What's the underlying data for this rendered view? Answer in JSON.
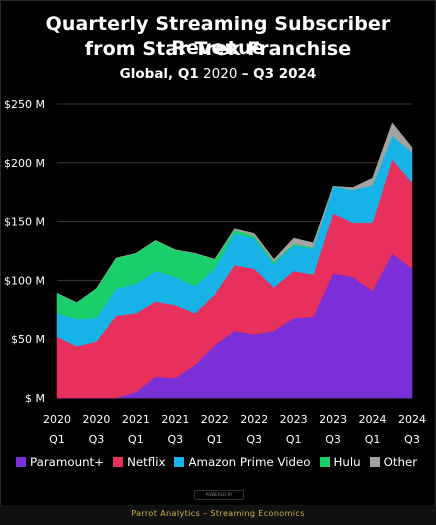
{
  "header": {
    "title_line1": "Quarterly Streaming Subscriber Revenue",
    "title_line2": "from Star Trek Franchise",
    "subtitle_bold": "Global, Q1",
    "subtitle_light_1": " 2020 ",
    "subtitle_dash": "–",
    "subtitle_bold_2": " Q3 2024"
  },
  "chart_data": {
    "type": "area",
    "stacked": true,
    "title": "Quarterly Streaming Subscriber Revenue from Star Trek Franchise",
    "subtitle": "Global, Q1 2020 – Q3 2024",
    "quarters": [
      "Q1 2020",
      "Q2 2020",
      "Q3 2020",
      "Q4 2020",
      "Q1 2021",
      "Q2 2021",
      "Q3 2021",
      "Q4 2021",
      "Q1 2022",
      "Q2 2022",
      "Q3 2022",
      "Q4 2022",
      "Q1 2023",
      "Q2 2023",
      "Q3 2023",
      "Q4 2023",
      "Q1 2024",
      "Q2 2024",
      "Q3 2024"
    ],
    "x_tick_labels": [
      {
        "year": "2020",
        "quarter": "Q1"
      },
      {
        "year": "2020",
        "quarter": "Q3"
      },
      {
        "year": "2021",
        "quarter": "Q1"
      },
      {
        "year": "2021",
        "quarter": "Q3"
      },
      {
        "year": "2022",
        "quarter": "Q1"
      },
      {
        "year": "2022",
        "quarter": "Q3"
      },
      {
        "year": "2023",
        "quarter": "Q1"
      },
      {
        "year": "2023",
        "quarter": "Q3"
      },
      {
        "year": "2024",
        "quarter": "Q1"
      },
      {
        "year": "2024",
        "quarter": "Q3"
      }
    ],
    "y_ticks": [
      "$ M",
      "$50 M",
      "$100 M",
      "$150 M",
      "$200 M",
      "$250 M"
    ],
    "y_tick_values": [
      0,
      50,
      100,
      150,
      200,
      250
    ],
    "ylim": [
      0,
      250
    ],
    "xlabel": "",
    "ylabel": "",
    "grid": true,
    "legend_position": "bottom",
    "series": [
      {
        "name": "Paramount+",
        "color": "#7b2fd6",
        "values": [
          0,
          0,
          0,
          0,
          5,
          18,
          17,
          28,
          45,
          57,
          54,
          57,
          68,
          69,
          106,
          103,
          91,
          123,
          110
        ]
      },
      {
        "name": "Netflix",
        "color": "#e8305c",
        "values": [
          52,
          44,
          48,
          70,
          67,
          64,
          62,
          44,
          43,
          56,
          56,
          37,
          40,
          36,
          51,
          46,
          58,
          80,
          73
        ]
      },
      {
        "name": "Amazon Prime Video",
        "color": "#17b3e8",
        "values": [
          20,
          23,
          20,
          23,
          25,
          26,
          24,
          23,
          22,
          27,
          26,
          20,
          22,
          22,
          23,
          28,
          32,
          20,
          26
        ]
      },
      {
        "name": "Hulu",
        "color": "#19cf6a",
        "values": [
          17,
          14,
          25,
          26,
          26,
          26,
          23,
          28,
          8,
          3,
          2,
          2,
          1,
          1,
          0,
          0,
          0,
          0,
          0
        ]
      },
      {
        "name": "Other",
        "color": "#a3a3a3",
        "values": [
          0,
          0,
          0,
          0,
          0,
          0,
          0,
          0,
          0,
          1,
          2,
          2,
          5,
          4,
          0,
          2,
          6,
          11,
          4
        ]
      }
    ]
  },
  "footer": {
    "powered_by": "POWERED BY",
    "attribution": "Parrot Analytics – Streaming Economics"
  }
}
